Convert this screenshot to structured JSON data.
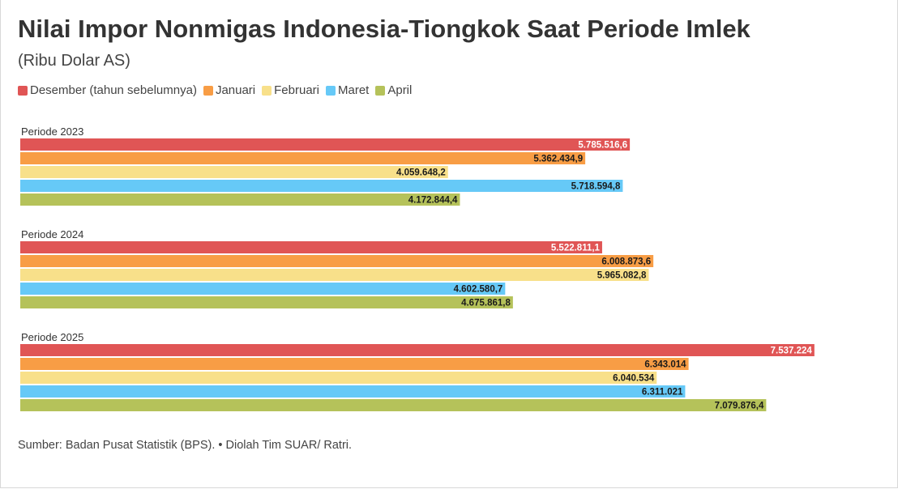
{
  "header": {
    "title": "Nilai Impor Nonmigas Indonesia-Tiongkok Saat Periode Imlek",
    "subtitle": "(Ribu Dolar AS)"
  },
  "footer": {
    "source": "Sumber: Badan Pusat Statistik (BPS). • Diolah Tim SUAR/ Ratri."
  },
  "chart_data": {
    "type": "bar",
    "orientation": "horizontal",
    "title": "Nilai Impor Nonmigas Indonesia-Tiongkok Saat Periode Imlek",
    "subtitle": "(Ribu Dolar AS)",
    "legend_position": "top-left",
    "xlim": [
      0,
      8000000
    ],
    "grid": false,
    "series": [
      {
        "name": "Desember (tahun sebelumnya)",
        "color": "#e05555",
        "label_color": "#ffffff"
      },
      {
        "name": "Januari",
        "color": "#f89d45",
        "label_color": "#1a1a1a"
      },
      {
        "name": "Februari",
        "color": "#f8e08a",
        "label_color": "#1a1a1a"
      },
      {
        "name": "Maret",
        "color": "#66c9f7",
        "label_color": "#1a1a1a"
      },
      {
        "name": "April",
        "color": "#b5c25a",
        "label_color": "#1a1a1a"
      }
    ],
    "groups": [
      {
        "label": "Periode 2023",
        "values": [
          5785516.6,
          5362434.9,
          4059648.2,
          5718594.8,
          4172844.4
        ],
        "value_labels": [
          "5.785.516,6",
          "5.362.434,9",
          "4.059.648,2",
          "5.718.594,8",
          "4.172.844,4"
        ]
      },
      {
        "label": "Periode 2024",
        "values": [
          5522811.1,
          6008873.6,
          5965082.8,
          4602580.7,
          4675861.8
        ],
        "value_labels": [
          "5.522.811,1",
          "6.008.873,6",
          "5.965.082,8",
          "4.602.580,7",
          "4.675.861,8"
        ]
      },
      {
        "label": "Periode 2025",
        "values": [
          7537224,
          6343014,
          6040534,
          6311021,
          7079876.4
        ],
        "value_labels": [
          "7.537.224",
          "6.343.014",
          "6.040.534",
          "6.311.021",
          "7.079.876,4"
        ]
      }
    ]
  }
}
